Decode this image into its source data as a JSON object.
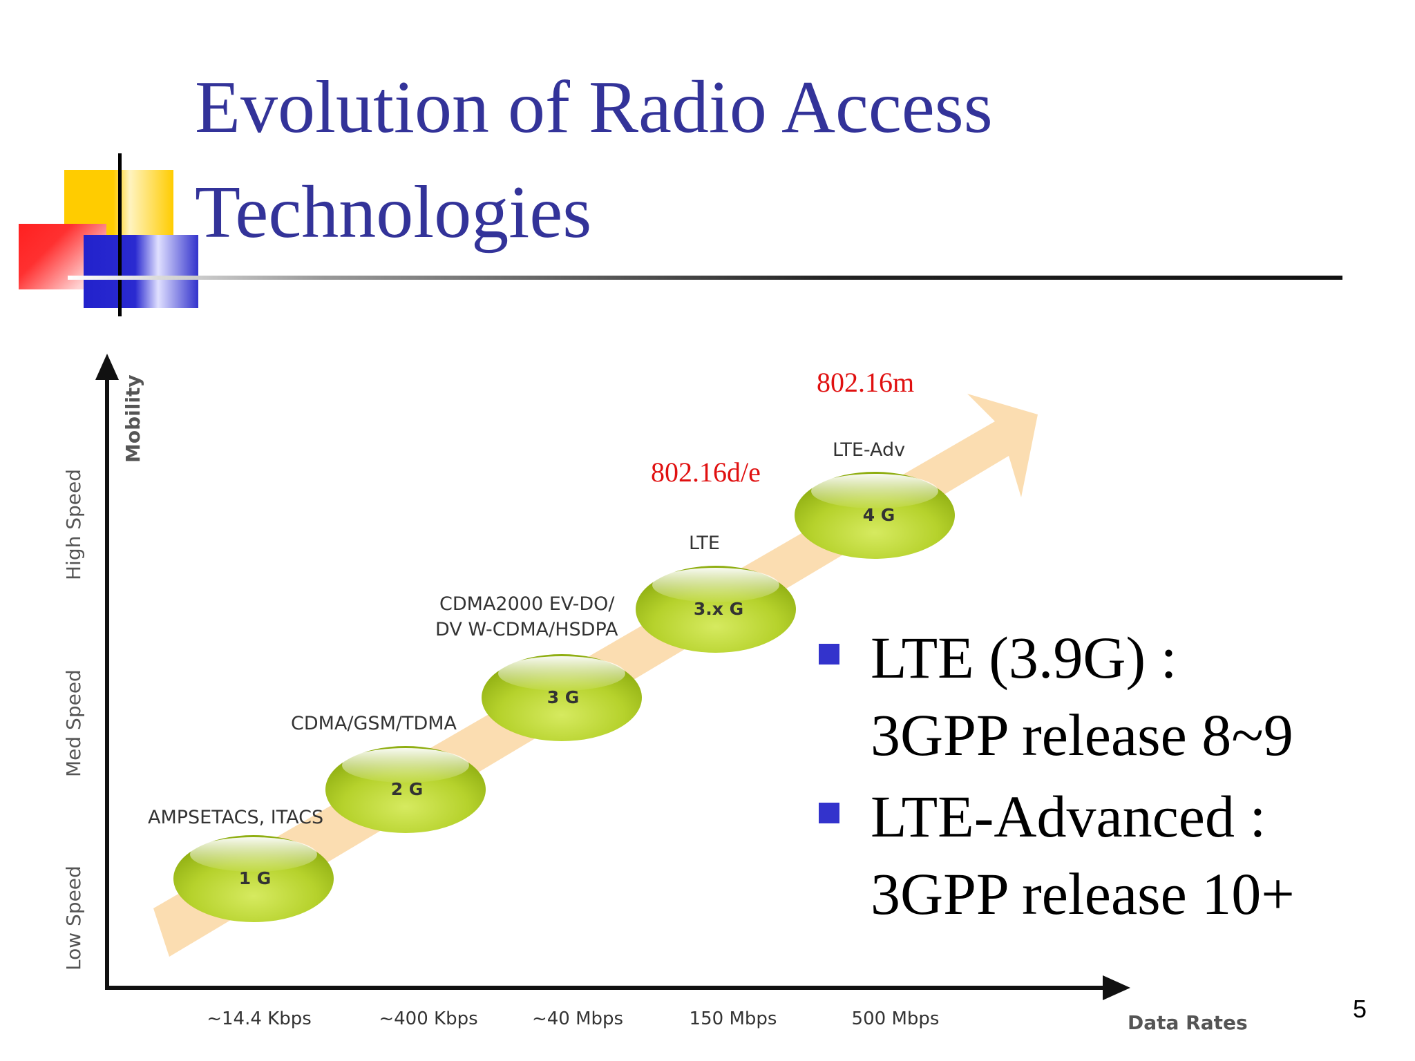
{
  "title": {
    "line1": "Evolution of Radio Access",
    "line2": "Technologies"
  },
  "diagram": {
    "y_axis_title": "Mobility",
    "x_axis_title": "Data Rates",
    "y_levels": [
      "Low Speed",
      "Med Speed",
      "High Speed"
    ],
    "x_ticks": [
      "~14.4 Kbps",
      "~400 Kbps",
      "~40 Mbps",
      "150 Mbps",
      "500 Mbps"
    ],
    "generations": [
      {
        "bubble": "1 G",
        "label": "AMPSETACS, ITACS"
      },
      {
        "bubble": "2 G",
        "label": "CDMA/GSM/TDMA"
      },
      {
        "bubble": "3 G",
        "label_line1": "CDMA2000 EV-DO/",
        "label_line2": "DV W-CDMA/HSDPA"
      },
      {
        "bubble": "3.x G",
        "label": "LTE"
      },
      {
        "bubble": "4 G",
        "label": "LTE-Adv"
      }
    ],
    "annotations": [
      "802.16d/e",
      "802.16m"
    ],
    "colors": {
      "arrow": "#fbd9a8",
      "bubble": "#b8d430",
      "annotation": "#e01010"
    }
  },
  "bullets": [
    {
      "line1": "LTE (3.9G) :",
      "line2": "3GPP release 8~9"
    },
    {
      "line1": "LTE-Advanced :",
      "line2": "3GPP release 10+"
    }
  ],
  "page_number": "5",
  "colors": {
    "title": "#333399",
    "bullet_square": "#3333cc"
  }
}
